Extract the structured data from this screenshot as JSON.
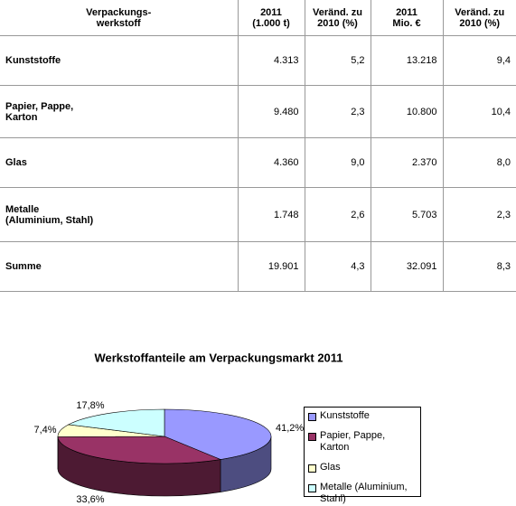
{
  "table": {
    "headers": [
      [
        "Verpackungs-",
        "werkstoff"
      ],
      [
        "2011",
        "(1.000 t)"
      ],
      [
        "Veränd. zu",
        "2010 (%)"
      ],
      [
        "2011",
        "Mio. €"
      ],
      [
        "Veränd. zu",
        "2010 (%)"
      ]
    ],
    "rows": [
      [
        [
          "Kunststoffe"
        ],
        "4.313",
        "5,2",
        "13.218",
        "9,4"
      ],
      [
        [
          "Papier, Pappe,",
          "Karton"
        ],
        "9.480",
        "2,3",
        "10.800",
        "10,4"
      ],
      [
        [
          "Glas"
        ],
        "4.360",
        "9,0",
        "2.370",
        "8,0"
      ],
      [
        [
          "Metalle",
          "(Aluminium, Stahl)"
        ],
        "1.748",
        "2,6",
        "5.703",
        "2,3"
      ],
      [
        [
          "Summe"
        ],
        "19.901",
        "4,3",
        "32.091",
        "8,3"
      ]
    ]
  },
  "chart_data": {
    "type": "pie",
    "title": "Werkstoffanteile am Verpackungsmarkt 2011",
    "categories": [
      "Kunststoffe",
      "Papier, Pappe, Karton",
      "Glas",
      "Metalle (Aluminium, Stahl)"
    ],
    "values": [
      41.2,
      33.6,
      7.4,
      17.8
    ],
    "value_labels": [
      "41,2%",
      "33,6%",
      "7,4%",
      "17,8%"
    ],
    "colors": [
      "#9999ff",
      "#993366",
      "#ffffcc",
      "#ccffff"
    ]
  }
}
